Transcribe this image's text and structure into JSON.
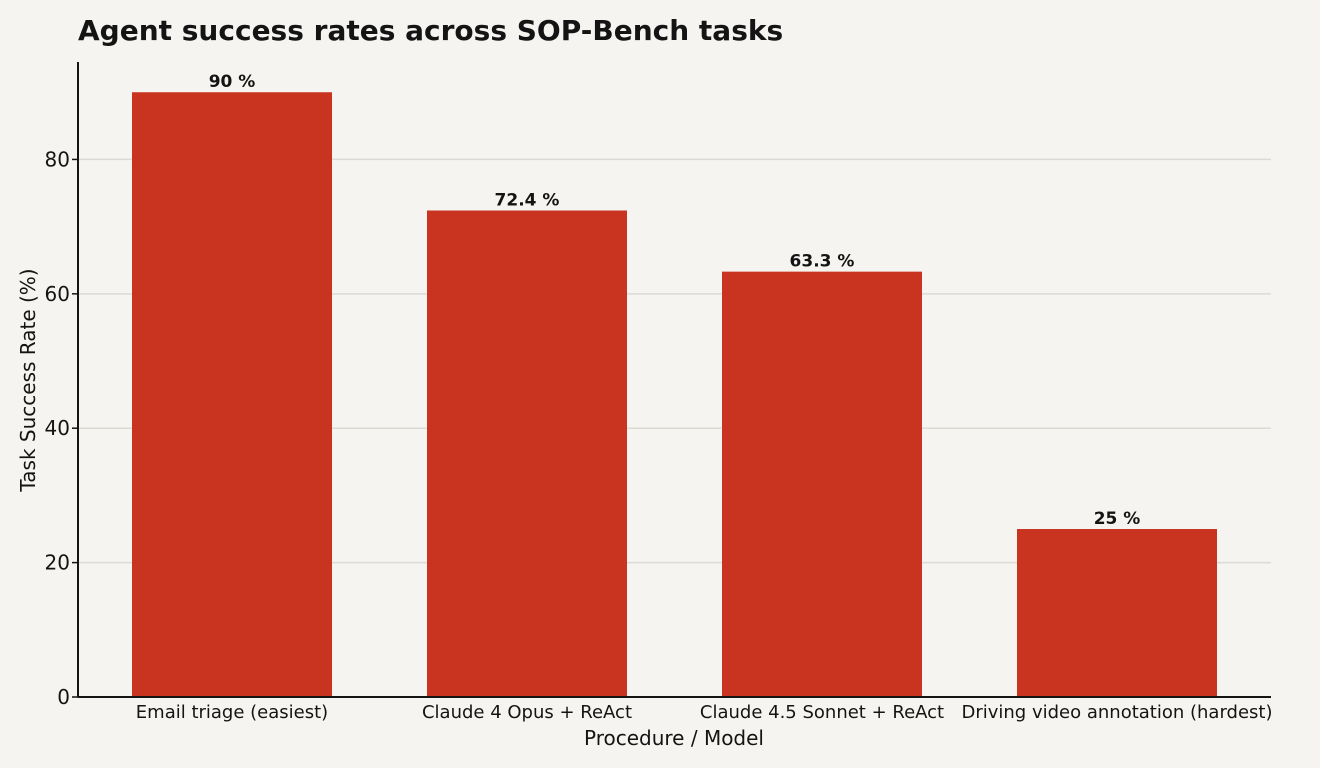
{
  "chart_data": {
    "type": "bar",
    "title": "Agent success rates across SOP-Bench tasks",
    "xlabel": "Procedure / Model",
    "ylabel": "Task Success Rate (%)",
    "categories": [
      "Email triage (easiest)",
      "Claude 4 Opus + ReAct",
      "Claude 4.5 Sonnet + ReAct",
      "Driving video annotation (hardest)"
    ],
    "values": [
      90,
      72.4,
      63.3,
      25
    ],
    "data_labels": [
      "90 %",
      "72.4 %",
      "63.3 %",
      "25 %"
    ],
    "ylim": [
      0,
      94.5
    ],
    "yticks": [
      0,
      20,
      40,
      60,
      80
    ],
    "grid": "horizontal",
    "bar_color": "#c93420",
    "background_color": "#f5f4f0",
    "gridline_color": "#dcdad5",
    "text_color": "#141414"
  }
}
